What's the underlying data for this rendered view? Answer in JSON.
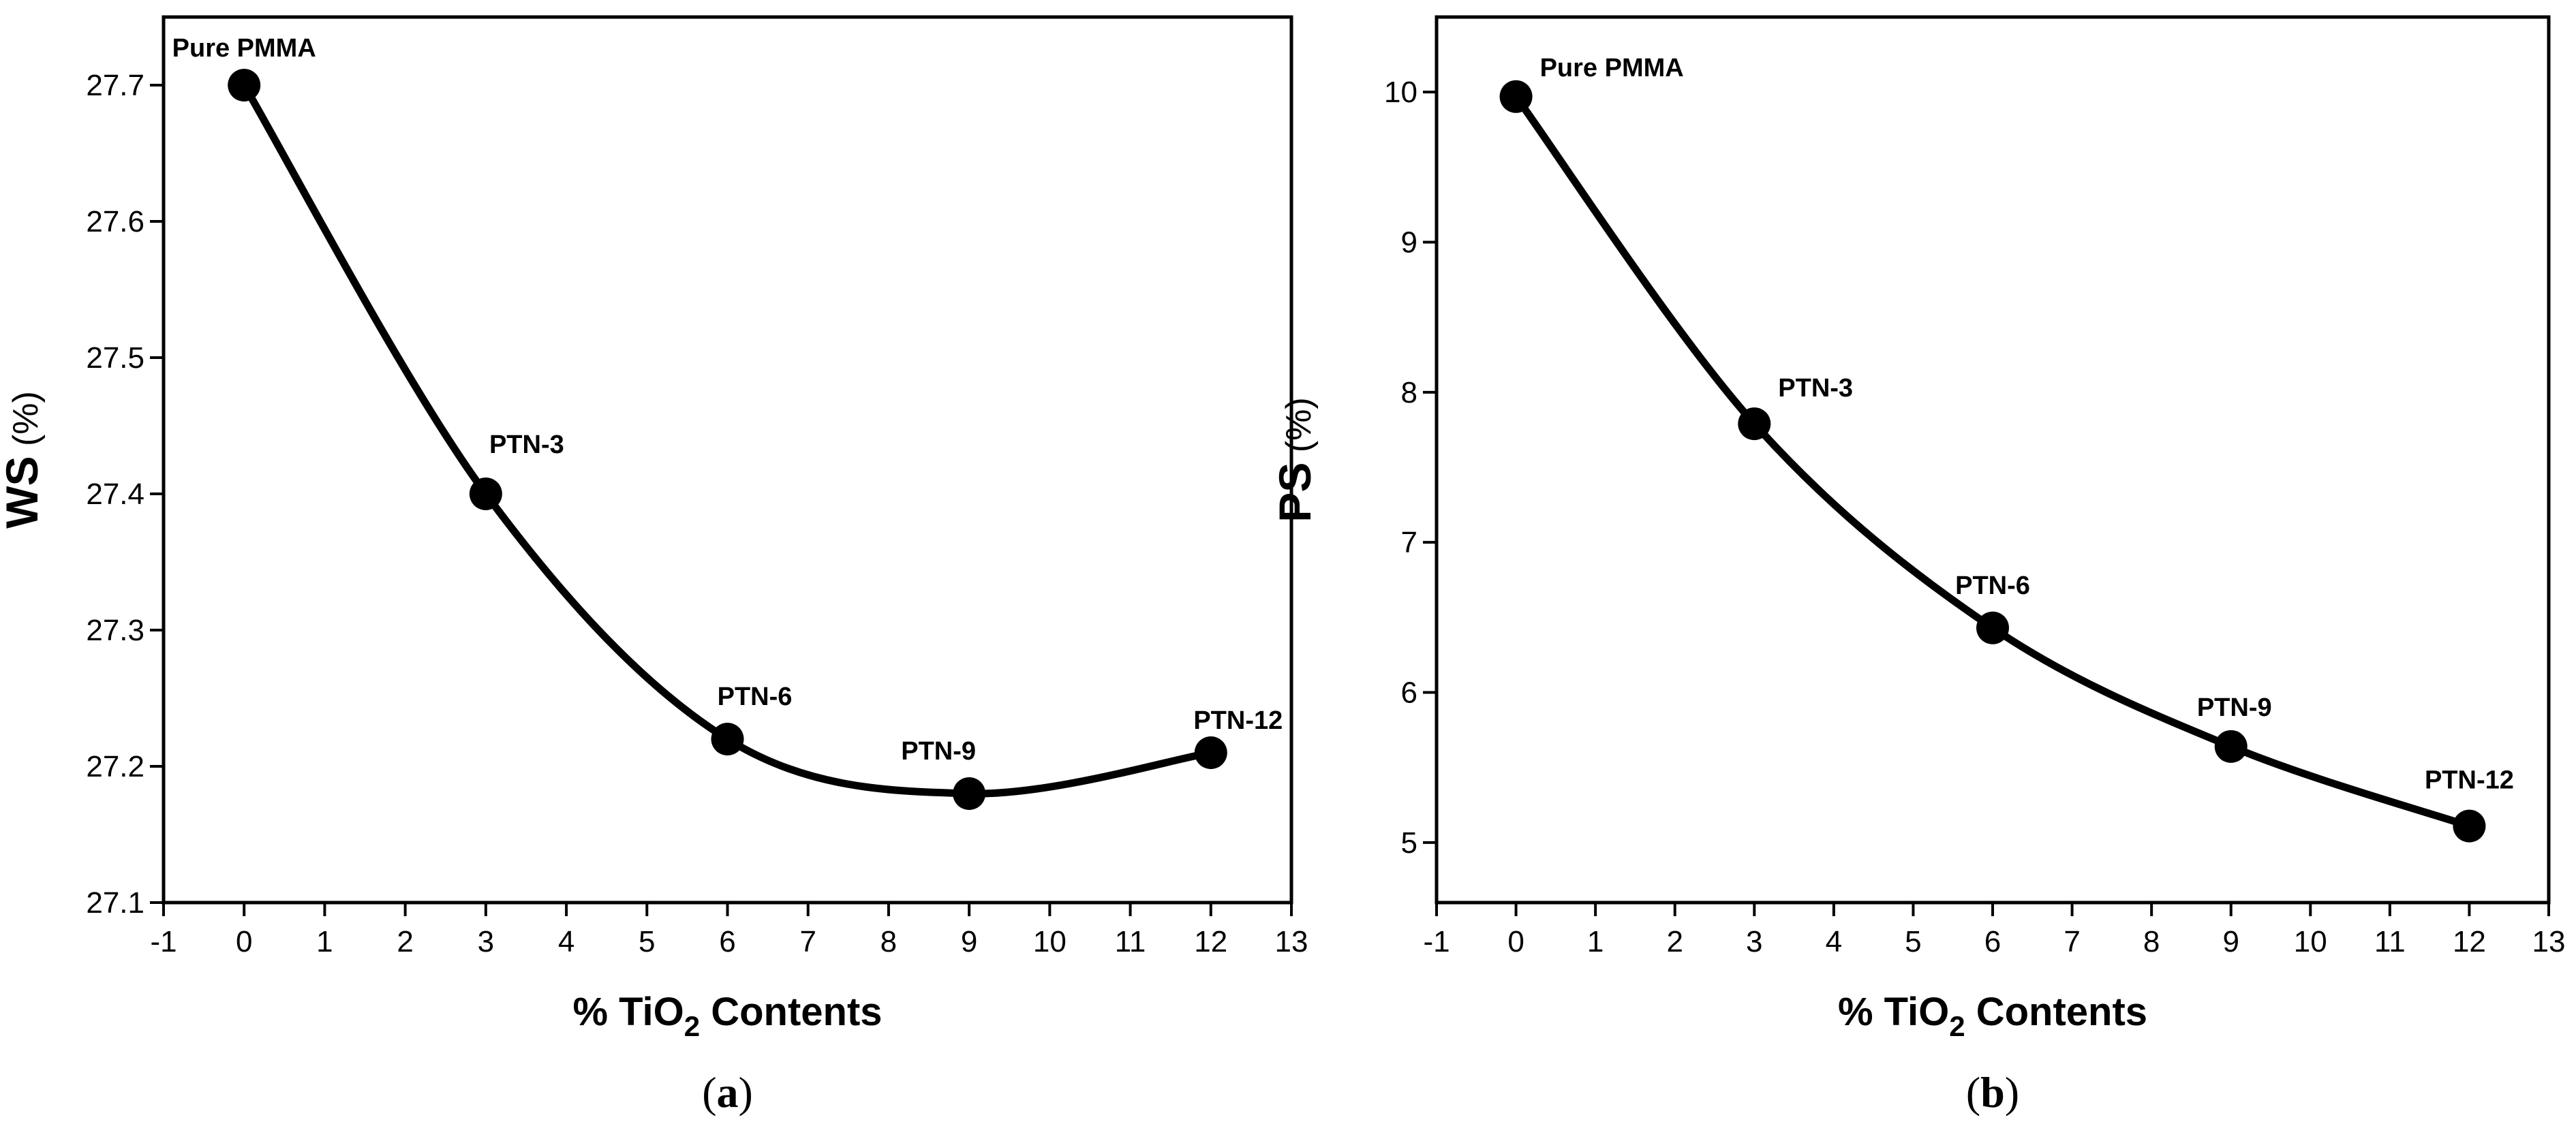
{
  "chart_data": [
    {
      "type": "line",
      "panel": "(a)",
      "panel_letter": "a",
      "xlabel": "% TiO2 Contents",
      "xlabel_parts": {
        "pre": "% TiO",
        "sub": "2",
        "post": " Contents"
      },
      "ylabel": "WS (%)",
      "ylabel_parts": {
        "main": "WS",
        "unit": " (%)"
      },
      "xlim": [
        -1,
        13
      ],
      "ylim": [
        27.1,
        27.75
      ],
      "xticks": [
        -1,
        0,
        1,
        2,
        3,
        4,
        5,
        6,
        7,
        8,
        9,
        10,
        11,
        12,
        13
      ],
      "yticks": [
        27.1,
        27.2,
        27.3,
        27.4,
        27.5,
        27.6,
        27.7
      ],
      "series": [
        {
          "x": [
            0,
            3,
            6,
            9,
            12
          ],
          "y": [
            27.7,
            27.4,
            27.22,
            27.18,
            27.21
          ],
          "labels": [
            "Pure PMMA",
            "PTN-3",
            "PTN-6",
            "PTN-9",
            "PTN-12"
          ]
        }
      ],
      "grid": false,
      "colors": {
        "line": "#000000",
        "marker": "#000000"
      }
    },
    {
      "type": "line",
      "panel": "(b)",
      "panel_letter": "b",
      "xlabel": "% TiO2 Contents",
      "xlabel_parts": {
        "pre": "% TiO",
        "sub": "2",
        "post": " Contents"
      },
      "ylabel": "PS (%)",
      "ylabel_parts": {
        "main": "PS",
        "unit": " (%)"
      },
      "xlim": [
        -1,
        13
      ],
      "ylim": [
        4.6,
        10.5
      ],
      "xticks": [
        -1,
        0,
        1,
        2,
        3,
        4,
        5,
        6,
        7,
        8,
        9,
        10,
        11,
        12,
        13
      ],
      "yticks": [
        5,
        6,
        7,
        8,
        9,
        10
      ],
      "series": [
        {
          "x": [
            0,
            3,
            6,
            9,
            12
          ],
          "y": [
            9.97,
            7.79,
            6.43,
            5.64,
            5.11
          ],
          "labels": [
            "Pure PMMA",
            "PTN-3",
            "PTN-6",
            "PTN-9",
            "PTN-12"
          ]
        }
      ],
      "grid": false,
      "colors": {
        "line": "#000000",
        "marker": "#000000"
      }
    }
  ]
}
